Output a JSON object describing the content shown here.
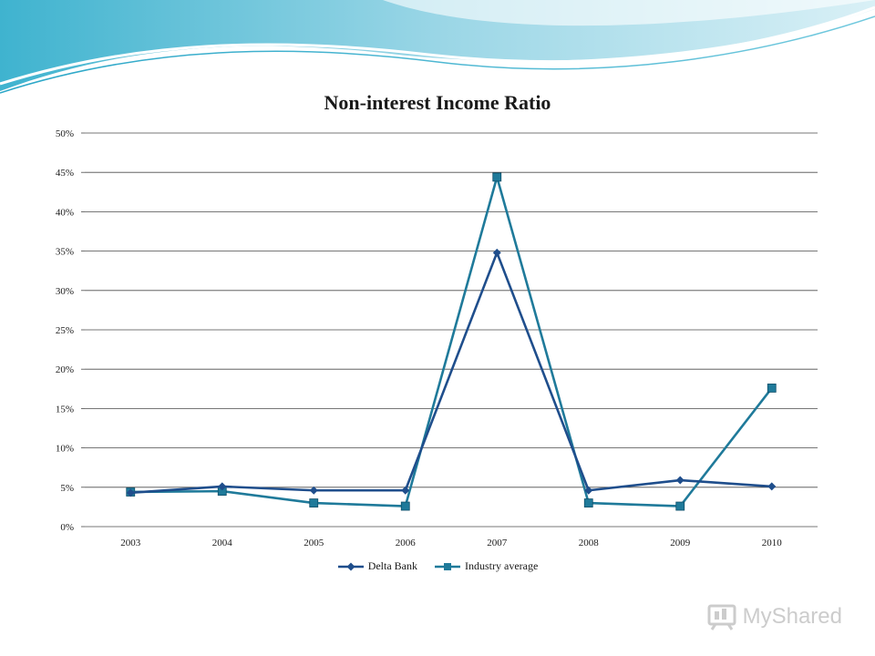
{
  "chart_data": {
    "type": "line",
    "title": "Non-interest Income Ratio",
    "xlabel": "",
    "ylabel": "",
    "categories": [
      "2003",
      "2004",
      "2005",
      "2006",
      "2007",
      "2008",
      "2009",
      "2010"
    ],
    "y_ticks": [
      "0%",
      "5%",
      "10%",
      "15%",
      "20%",
      "25%",
      "30%",
      "35%",
      "40%",
      "45%",
      "50%"
    ],
    "ylim": [
      0,
      50
    ],
    "grid": true,
    "legend_position": "bottom",
    "series": [
      {
        "name": "Delta Bank",
        "marker": "diamond",
        "color": "#1F4E8C",
        "values": [
          4.3,
          5.1,
          4.6,
          4.6,
          34.8,
          4.6,
          5.9,
          5.1
        ]
      },
      {
        "name": "Industry average",
        "marker": "square",
        "color": "#1F7A9A",
        "values": [
          4.4,
          4.5,
          3.0,
          2.6,
          44.4,
          3.0,
          2.6,
          17.6
        ]
      }
    ]
  },
  "watermark": {
    "text": "MyShared"
  },
  "colors": {
    "header_wave_light": "#bfe7f1",
    "header_wave_dark": "#5cc1d6",
    "gridline": "#4a4a4a"
  }
}
